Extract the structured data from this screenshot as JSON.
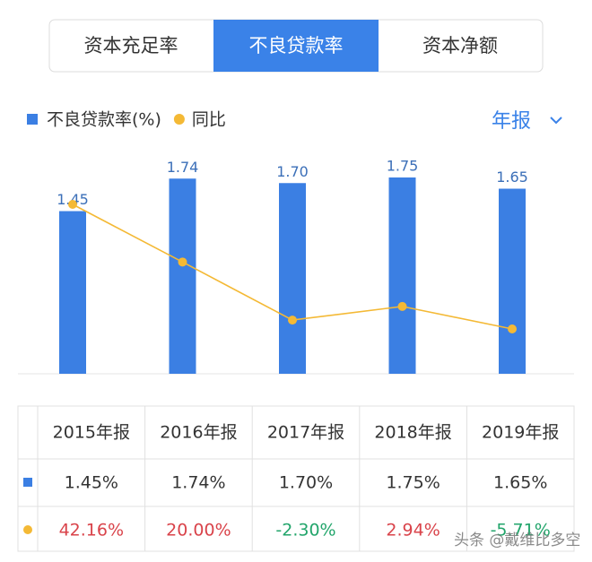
{
  "tabs": [
    "资本充足率",
    "不良贷款率",
    "资本净额"
  ],
  "period_selector": "年报",
  "chart_data": {
    "type": "bar",
    "categories": [
      "2015年报",
      "2016年报",
      "2017年报",
      "2018年报",
      "2019年报"
    ],
    "series": [
      {
        "name": "不良贷款率(%)",
        "type": "bar",
        "color": "#3b7fe3",
        "values": [
          1.45,
          1.74,
          1.7,
          1.75,
          1.65
        ],
        "value_labels": [
          "1.45",
          "1.74",
          "1.70",
          "1.75",
          "1.65"
        ]
      },
      {
        "name": "同比",
        "type": "line",
        "color": "#f4b935",
        "values": [
          42.16,
          20.0,
          -2.3,
          2.94,
          -5.71
        ]
      }
    ]
  },
  "table": {
    "rows": [
      [
        "1.45%",
        "1.74%",
        "1.70%",
        "1.75%",
        "1.65%"
      ],
      [
        "42.16%",
        "20.00%",
        "-2.30%",
        "2.94%",
        "-5.71%"
      ]
    ]
  },
  "watermark": "头条 @戴维比多空"
}
